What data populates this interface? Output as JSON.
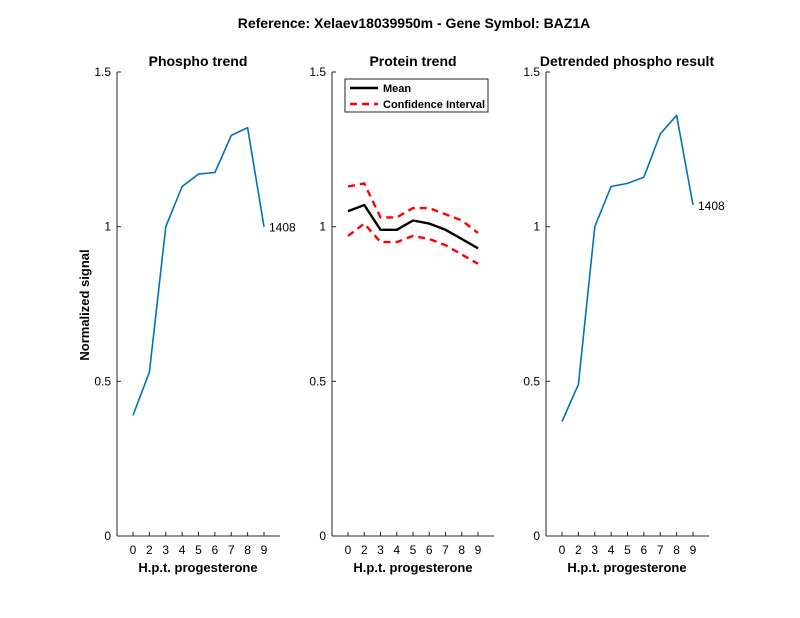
{
  "title": "Reference:  Xelaev18039950m - Gene Symbol:  BAZ1A",
  "ylabel": "Normalized signal",
  "colors": {
    "series": "#0072bd",
    "mean": "#000000",
    "ci": "#ff0000"
  },
  "chart_data": [
    {
      "type": "line",
      "title": "Phospho trend",
      "xlabel": "H.p.t. progesterone",
      "x": [
        0,
        2,
        3,
        4,
        5,
        6,
        7,
        8,
        9
      ],
      "xticks": [
        "0",
        "2",
        "3",
        "4",
        "5",
        "6",
        "7",
        "8",
        "9"
      ],
      "ylim": [
        0,
        1.5
      ],
      "yticks": [
        "0",
        "0.5",
        "1",
        "1.5"
      ],
      "series": [
        {
          "values": [
            0.39,
            0.53,
            1.0,
            1.13,
            1.17,
            1.175,
            1.295,
            1.32,
            1.0
          ]
        }
      ],
      "end_label": "1408"
    },
    {
      "type": "line",
      "title": "Protein trend",
      "xlabel": "H.p.t. progesterone",
      "x": [
        0,
        2,
        3,
        4,
        5,
        6,
        7,
        8,
        9
      ],
      "xticks": [
        "0",
        "2",
        "3",
        "4",
        "5",
        "6",
        "7",
        "8",
        "9"
      ],
      "ylim": [
        0,
        1.5
      ],
      "yticks": [
        "0",
        "0.5",
        "1",
        "1.5"
      ],
      "legend": {
        "position": "top-left",
        "entries": [
          "Mean",
          "Confidence Interval"
        ]
      },
      "series": [
        {
          "name": "Mean",
          "values": [
            1.05,
            1.07,
            0.99,
            0.99,
            1.02,
            1.01,
            0.99,
            0.96,
            0.93
          ]
        },
        {
          "name": "Confidence Interval",
          "values": [
            1.13,
            1.14,
            1.03,
            1.03,
            1.06,
            1.06,
            1.04,
            1.02,
            0.98
          ]
        },
        {
          "name": "Confidence Interval",
          "values": [
            0.97,
            1.01,
            0.95,
            0.95,
            0.97,
            0.96,
            0.94,
            0.91,
            0.88
          ]
        }
      ]
    },
    {
      "type": "line",
      "title": "Detrended phospho result",
      "xlabel": "H.p.t. progesterone",
      "x": [
        0,
        2,
        3,
        4,
        5,
        6,
        7,
        8,
        9
      ],
      "xticks": [
        "0",
        "2",
        "3",
        "4",
        "5",
        "6",
        "7",
        "8",
        "9"
      ],
      "ylim": [
        0,
        1.5
      ],
      "yticks": [
        "0",
        "0.5",
        "1",
        "1.5"
      ],
      "series": [
        {
          "values": [
            0.37,
            0.49,
            1.0,
            1.13,
            1.14,
            1.16,
            1.3,
            1.36,
            1.07
          ]
        }
      ],
      "end_label": "1408"
    }
  ]
}
